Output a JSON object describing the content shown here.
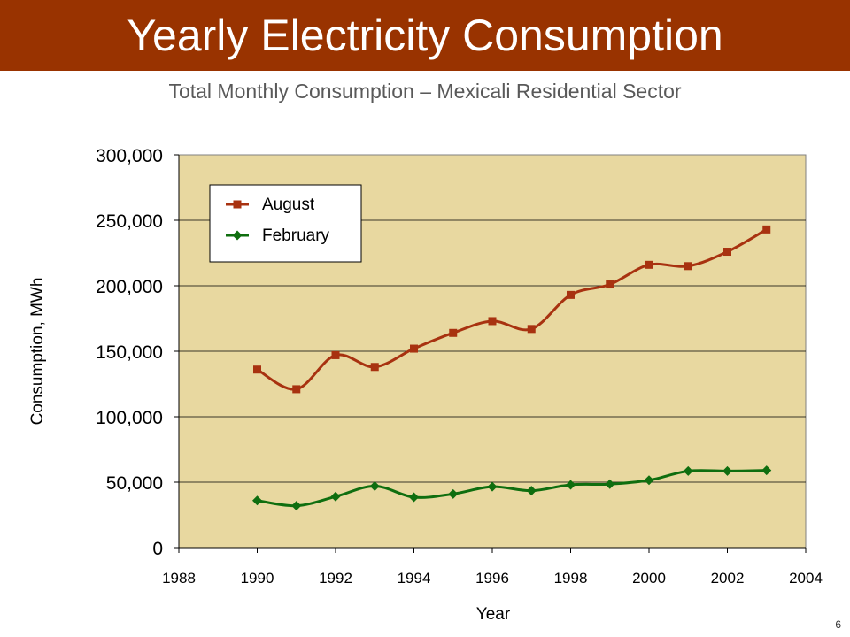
{
  "slide": {
    "title": "Yearly Electricity Consumption",
    "subtitle": "Total Monthly Consumption – Mexicali Residential Sector",
    "page_number": "6"
  },
  "colors": {
    "title_bar": "#993300",
    "plot_bg": "#E8D8A0",
    "august": "#A83210",
    "february": "#0F6E0F"
  },
  "chart_data": {
    "type": "line",
    "xlabel": "Year",
    "ylabel": "Consumption, MWh",
    "xlim": [
      1988,
      2004
    ],
    "ylim": [
      0,
      300000
    ],
    "x_ticks": [
      "1988",
      "1990",
      "1992",
      "1994",
      "1996",
      "1998",
      "2000",
      "2002",
      "2004"
    ],
    "y_ticks": [
      "0",
      "50,000",
      "100,000",
      "150,000",
      "200,000",
      "250,000",
      "300,000"
    ],
    "grid": "horizontal",
    "legend_position": "top-left",
    "series": [
      {
        "name": "August",
        "marker": "square",
        "x": [
          1990,
          1991,
          1992,
          1993,
          1994,
          1995,
          1996,
          1997,
          1998,
          1999,
          2000,
          2001,
          2002,
          2003
        ],
        "values": [
          136000,
          121000,
          147000,
          138000,
          152000,
          164000,
          173000,
          167000,
          193000,
          201000,
          216000,
          215000,
          226000,
          243000
        ]
      },
      {
        "name": "February",
        "marker": "diamond",
        "x": [
          1990,
          1991,
          1992,
          1993,
          1994,
          1995,
          1996,
          1997,
          1998,
          1999,
          2000,
          2001,
          2002,
          2003
        ],
        "values": [
          36000,
          32000,
          39000,
          47000,
          38500,
          41000,
          46500,
          43500,
          48000,
          48500,
          51500,
          58500,
          58500,
          59000
        ]
      }
    ]
  }
}
